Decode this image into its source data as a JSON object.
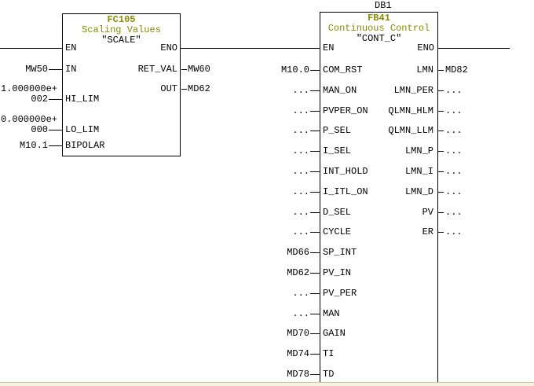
{
  "app": {
    "background": "#ffffff",
    "line_color": "#000000",
    "accent_olive": "#8a8a00",
    "bottom_strip_color": "#f6f2de"
  },
  "network": {
    "blocks": [
      {
        "id": "fc105",
        "title": "FC105",
        "comment": "Scaling Values",
        "symbol": "\"SCALE\"",
        "en_label": "EN",
        "eno_label": "ENO",
        "inputs": [
          {
            "operand": "MW50",
            "label": "IN"
          },
          {
            "operand_lines": [
              "1.000000e+",
              "002"
            ],
            "label": "HI_LIM"
          },
          {
            "operand_lines": [
              "0.000000e+",
              "000"
            ],
            "label": "LO_LIM"
          },
          {
            "operand": "M10.1",
            "label": "BIPOLAR"
          }
        ],
        "outputs": [
          {
            "label": "RET_VAL",
            "operand": "MW60"
          },
          {
            "label": "OUT",
            "operand": "MD62"
          }
        ]
      },
      {
        "id": "fb41",
        "db_label": "DB1",
        "title": "FB41",
        "comment": "Continuous Control",
        "symbol": "\"CONT_C\"",
        "en_label": "EN",
        "eno_label": "ENO",
        "inputs": [
          {
            "operand": "M10.0",
            "label": "COM_RST"
          },
          {
            "operand": "...",
            "label": "MAN_ON"
          },
          {
            "operand": "...",
            "label": "PVPER_ON"
          },
          {
            "operand": "...",
            "label": "P_SEL"
          },
          {
            "operand": "...",
            "label": "I_SEL"
          },
          {
            "operand": "...",
            "label": "INT_HOLD"
          },
          {
            "operand": "...",
            "label": "I_ITL_ON"
          },
          {
            "operand": "...",
            "label": "D_SEL"
          },
          {
            "operand": "...",
            "label": "CYCLE"
          },
          {
            "operand": "MD66",
            "label": "SP_INT"
          },
          {
            "operand": "MD62",
            "label": "PV_IN"
          },
          {
            "operand": "...",
            "label": "PV_PER"
          },
          {
            "operand": "...",
            "label": "MAN"
          },
          {
            "operand": "MD70",
            "label": "GAIN"
          },
          {
            "operand": "MD74",
            "label": "TI"
          },
          {
            "operand": "MD78",
            "label": "TD"
          }
        ],
        "outputs": [
          {
            "label": "LMN",
            "operand": "MD82"
          },
          {
            "label": "LMN_PER",
            "operand": "..."
          },
          {
            "label": "QLMN_HLM",
            "operand": "..."
          },
          {
            "label": "QLMN_LLM",
            "operand": "..."
          },
          {
            "label": "LMN_P",
            "operand": "..."
          },
          {
            "label": "LMN_I",
            "operand": "..."
          },
          {
            "label": "LMN_D",
            "operand": "..."
          },
          {
            "label": "PV",
            "operand": "..."
          },
          {
            "label": "ER",
            "operand": "..."
          }
        ]
      }
    ]
  }
}
